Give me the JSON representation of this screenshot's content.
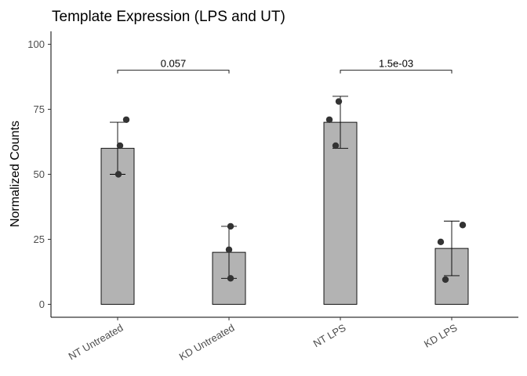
{
  "chart_data": {
    "type": "bar",
    "title": "Template Expression (LPS and UT)",
    "xlabel": "",
    "ylabel": "Normalized Counts",
    "categories": [
      "NT Untreated",
      "KD Untreated",
      "NT LPS",
      "KD LPS"
    ],
    "values": [
      60,
      20,
      70,
      21.5
    ],
    "error_bars": [
      {
        "low": 50,
        "high": 70
      },
      {
        "low": 10,
        "high": 30
      },
      {
        "low": 60,
        "high": 80
      },
      {
        "low": 11,
        "high": 32
      }
    ],
    "points": [
      [
        50,
        61,
        71
      ],
      [
        10,
        21,
        30
      ],
      [
        61,
        71,
        78
      ],
      [
        9.5,
        24,
        30.5
      ]
    ],
    "ylim": [
      -5,
      105
    ],
    "yticks": [
      0,
      25,
      50,
      75,
      100
    ],
    "comparisons": [
      {
        "from": "NT Untreated",
        "to": "KD Untreated",
        "label": "0.057",
        "y": 90
      },
      {
        "from": "NT LPS",
        "to": "KD LPS",
        "label": "1.5e-03",
        "y": 90
      }
    ],
    "bar_color": "#b3b3b3",
    "point_color": "#333333",
    "grid": false,
    "legend": "none"
  }
}
